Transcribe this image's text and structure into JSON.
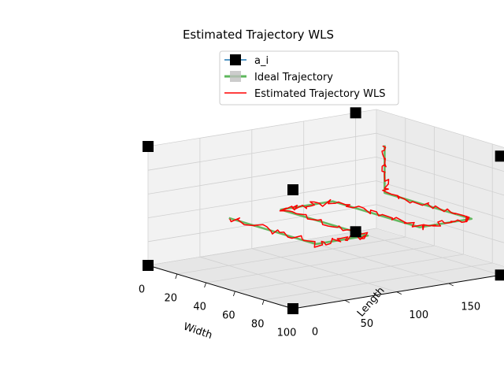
{
  "chart_data": {
    "type": "line3d",
    "title": "Estimated Trajectory WLS",
    "xlabel": "Width",
    "ylabel": "Length",
    "zlabel": "",
    "xlim": [
      0,
      100
    ],
    "ylim": [
      0,
      220
    ],
    "zlim": [
      0,
      25
    ],
    "xticks": [
      "0",
      "20",
      "40",
      "60",
      "80",
      "100"
    ],
    "yticks": [
      "0",
      "50",
      "100",
      "150",
      "200"
    ],
    "zticks": [
      "0",
      "5",
      "10",
      "15",
      "20",
      "25"
    ],
    "grid": true,
    "legend_position": "top-right",
    "legend": [
      "a_i",
      "Ideal Trajectory",
      "Estimated Trajectory WLS"
    ],
    "series": [
      {
        "name": "a_i",
        "style": "markers",
        "color": "#000000",
        "points": [
          {
            "x": 0,
            "y": 0,
            "z": 0
          },
          {
            "x": 100,
            "y": 0,
            "z": 0
          },
          {
            "x": 0,
            "y": 200,
            "z": 0
          },
          {
            "x": 100,
            "y": 200,
            "z": 0
          },
          {
            "x": 0,
            "y": 0,
            "z": 25
          },
          {
            "x": 100,
            "y": 0,
            "z": 25
          },
          {
            "x": 0,
            "y": 200,
            "z": 25
          },
          {
            "x": 100,
            "y": 200,
            "z": 25
          }
        ]
      },
      {
        "name": "Ideal Trajectory",
        "style": "line",
        "color": "#4daf4a",
        "points": [
          {
            "x": 20,
            "y": 200,
            "z": 20
          },
          {
            "x": 20,
            "y": 200,
            "z": 10
          },
          {
            "x": 80,
            "y": 200,
            "z": 10
          },
          {
            "x": 80,
            "y": 150,
            "z": 10
          },
          {
            "x": 20,
            "y": 150,
            "z": 10
          },
          {
            "x": 20,
            "y": 100,
            "z": 10
          },
          {
            "x": 80,
            "y": 100,
            "z": 10
          },
          {
            "x": 80,
            "y": 50,
            "z": 10
          },
          {
            "x": 20,
            "y": 50,
            "z": 10
          }
        ]
      },
      {
        "name": "Estimated Trajectory WLS",
        "style": "line",
        "color": "#ff0000",
        "noise": 1.6,
        "points": [
          {
            "x": 20,
            "y": 200,
            "z": 20
          },
          {
            "x": 20,
            "y": 200,
            "z": 10
          },
          {
            "x": 80,
            "y": 200,
            "z": 10
          },
          {
            "x": 80,
            "y": 150,
            "z": 10
          },
          {
            "x": 20,
            "y": 150,
            "z": 10
          },
          {
            "x": 20,
            "y": 100,
            "z": 10
          },
          {
            "x": 80,
            "y": 100,
            "z": 10
          },
          {
            "x": 80,
            "y": 50,
            "z": 10
          },
          {
            "x": 20,
            "y": 50,
            "z": 10
          }
        ]
      }
    ]
  }
}
